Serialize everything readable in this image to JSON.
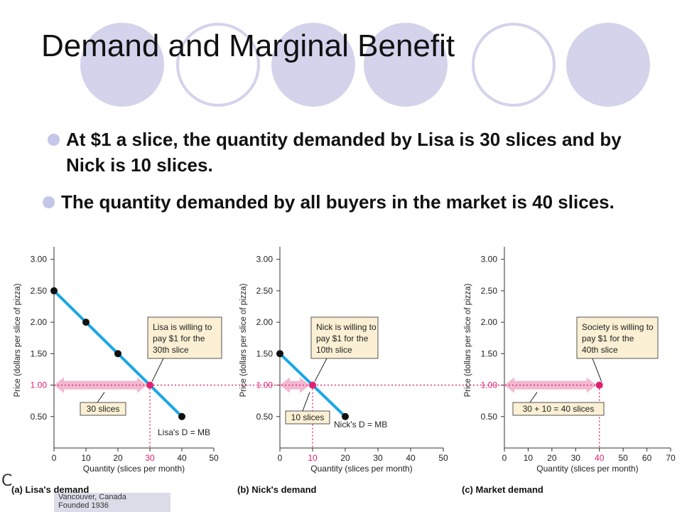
{
  "slide": {
    "title": "Demand and Marginal Benefit",
    "bullets": [
      "At $1 a slice, the quantity demanded by Lisa is 30 slices and by Nick is 10 slices.",
      "The quantity demanded by all buyers in the market is 40 slices."
    ],
    "decor_colors": {
      "circle": "#d3d3ec",
      "bullet": "#c4c6ea"
    },
    "side_glyph": "C",
    "logo_text": [
      "Vancouver, Canada",
      "Founded 1936"
    ]
  },
  "chart_data": [
    {
      "type": "line",
      "caption": "(a) Lisa's demand",
      "ylabel": "Price (dollars per slice of pizza)",
      "xlabel": "Quantity (slices per month)",
      "xlim": [
        0,
        50
      ],
      "ylim": [
        0,
        3.2
      ],
      "xticks": [
        "0",
        "10",
        "20",
        "30",
        "40",
        "50"
      ],
      "yticks": [
        "0.50",
        "1.00",
        "1.50",
        "2.00",
        "2.50",
        "3.00"
      ],
      "series": [
        {
          "name": "Lisa's D = MB",
          "x": [
            0,
            10,
            20,
            30,
            40
          ],
          "y": [
            2.5,
            2.0,
            1.5,
            1.0,
            0.5
          ]
        }
      ],
      "highlight": {
        "x": 30,
        "y": 1.0
      },
      "callout": "Lisa is willing to pay $1 for the 30th slice",
      "quantity_box": "30 slices",
      "line_label": "Lisa's D = MB",
      "colors": {
        "line": "#1aa7e6",
        "highlight": "#e0226e",
        "arrow": "#f2b8d0",
        "box": "#fbf0d4"
      }
    },
    {
      "type": "line",
      "caption": "(b) Nick's demand",
      "ylabel": "Price (dollars per slice of pizza)",
      "xlabel": "Quantity (slices per month)",
      "xlim": [
        0,
        50
      ],
      "ylim": [
        0,
        3.2
      ],
      "xticks": [
        "0",
        "10",
        "20",
        "30",
        "40",
        "50"
      ],
      "yticks": [
        "0.50",
        "1.00",
        "1.50",
        "2.00",
        "2.50",
        "3.00"
      ],
      "series": [
        {
          "name": "Nick's D = MB",
          "x": [
            0,
            10,
            20
          ],
          "y": [
            1.5,
            1.0,
            0.5
          ]
        }
      ],
      "highlight": {
        "x": 10,
        "y": 1.0
      },
      "callout": "Nick is willing to pay $1 for the 10th slice",
      "quantity_box": "10 slices",
      "line_label": "Nick's D = MB",
      "colors": {
        "line": "#1aa7e6",
        "highlight": "#e0226e",
        "arrow": "#f2b8d0",
        "box": "#fbf0d4"
      }
    },
    {
      "type": "scatter",
      "caption": "(c) Market demand",
      "ylabel": "Price (dollars per slice of pizza)",
      "xlabel": "Quantity (slices per month)",
      "xlim": [
        0,
        70
      ],
      "ylim": [
        0,
        3.2
      ],
      "xticks": [
        "0",
        "10",
        "20",
        "30",
        "40",
        "50",
        "60",
        "70"
      ],
      "yticks": [
        "0.50",
        "1.00",
        "1.50",
        "2.00",
        "2.50",
        "3.00"
      ],
      "series": [
        {
          "x": [
            40
          ],
          "y": [
            1.0
          ]
        }
      ],
      "highlight": {
        "x": 40,
        "y": 1.0
      },
      "callout": "Society is willing to pay $1 for the 40th slice",
      "quantity_box": "30 + 10 = 40 slices",
      "colors": {
        "highlight": "#e0226e",
        "arrow": "#f2b8d0",
        "box": "#fbf0d4"
      }
    }
  ]
}
